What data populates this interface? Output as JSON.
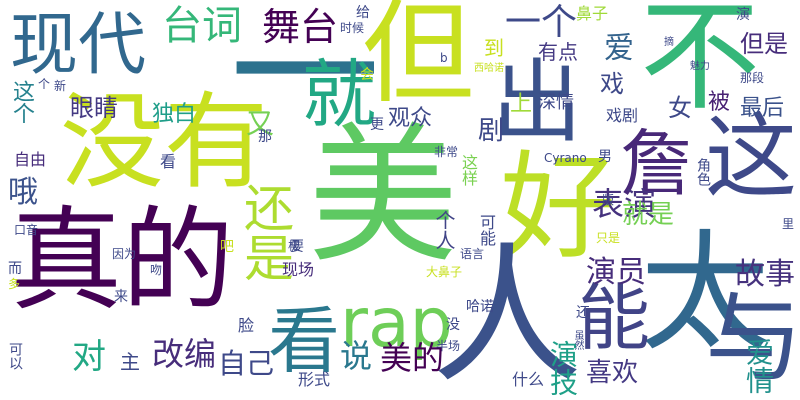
{
  "words": [
    {
      "text": "美",
      "color": "#5ec962"
    },
    {
      "text": "没有",
      "color": "#c8e020"
    },
    {
      "text": "真的",
      "color": "#440154"
    },
    {
      "text": "但",
      "color": "#c8e020"
    },
    {
      "text": "不",
      "color": "#35b779"
    },
    {
      "text": "太",
      "color": "#31688e"
    },
    {
      "text": "好",
      "color": "#bddf26"
    },
    {
      "text": "一",
      "color": "#2c728e"
    },
    {
      "text": "出",
      "color": "#3b528b"
    },
    {
      "text": "人",
      "color": "#3b528b"
    },
    {
      "text": "这",
      "color": "#3e4989"
    },
    {
      "text": "与",
      "color": "#3b528b"
    },
    {
      "text": "就",
      "color": "#22a884"
    },
    {
      "text": "看",
      "color": "#2a788e"
    },
    {
      "text": "能",
      "color": "#414487"
    },
    {
      "text": "詹",
      "color": "#482878"
    },
    {
      "text": "现代",
      "color": "#31688e"
    },
    {
      "text": "rap",
      "color": "#6ece58"
    },
    {
      "text": "还是",
      "color": "#addc30"
    },
    {
      "text": "台词",
      "color": "#35b779"
    },
    {
      "text": "舞台",
      "color": "#440154"
    },
    {
      "text": "一个",
      "color": "#3e4989"
    },
    {
      "text": "表演",
      "color": "#46327e"
    },
    {
      "text": "故事",
      "color": "#46327e"
    },
    {
      "text": "演员",
      "color": "#472d7b"
    },
    {
      "text": "改编",
      "color": "#472d7b"
    },
    {
      "text": "美的",
      "color": "#440154"
    },
    {
      "text": "自己",
      "color": "#3e4989"
    },
    {
      "text": "对",
      "color": "#22a884"
    },
    {
      "text": "说",
      "color": "#2a788e"
    },
    {
      "text": "喜欢",
      "color": "#443983"
    },
    {
      "text": "爱情",
      "color": "#21918c"
    },
    {
      "text": "演技",
      "color": "#1fa088"
    },
    {
      "text": "就是",
      "color": "#75d054"
    },
    {
      "text": "眼睛",
      "color": "#443983"
    },
    {
      "text": "独白",
      "color": "#1f9e89"
    },
    {
      "text": "这个",
      "color": "#26828e"
    },
    {
      "text": "哦",
      "color": "#3b528b"
    },
    {
      "text": "又",
      "color": "#75d054"
    },
    {
      "text": "爱",
      "color": "#33638d"
    },
    {
      "text": "戏",
      "color": "#3e4989"
    },
    {
      "text": "剧",
      "color": "#3e4989"
    },
    {
      "text": "被",
      "color": "#482173"
    },
    {
      "text": "最后",
      "color": "#3b528b"
    },
    {
      "text": "女",
      "color": "#3e4989"
    },
    {
      "text": "但是",
      "color": "#472d7b"
    },
    {
      "text": "有点",
      "color": "#443983"
    },
    {
      "text": "到",
      "color": "#c8e020"
    },
    {
      "text": "观众",
      "color": "#3e4989"
    },
    {
      "text": "深情",
      "color": "#3e4989"
    },
    {
      "text": "上",
      "color": "#a0da39"
    },
    {
      "text": "戏剧",
      "color": "#3e4989"
    },
    {
      "text": "鼻子",
      "color": "#a0da39"
    },
    {
      "text": "给",
      "color": "#3e4989"
    },
    {
      "text": "时候",
      "color": "#3e4989"
    },
    {
      "text": "演",
      "color": "#3e4989"
    },
    {
      "text": "个人",
      "color": "#414487"
    },
    {
      "text": "主",
      "color": "#3e4989"
    },
    {
      "text": "脸",
      "color": "#3e4989"
    },
    {
      "text": "现场",
      "color": "#472d7b"
    },
    {
      "text": "自由",
      "color": "#472d7b"
    },
    {
      "text": "看",
      "color": "#3e4989"
    },
    {
      "text": "吧",
      "color": "#c8e020"
    },
    {
      "text": "要",
      "color": "#3e4989"
    },
    {
      "text": "那",
      "color": "#3e4989"
    },
    {
      "text": "更",
      "color": "#3e4989"
    },
    {
      "text": "这样",
      "color": "#7ad151"
    },
    {
      "text": "可能",
      "color": "#3e4989"
    },
    {
      "text": "角色",
      "color": "#3e4989"
    },
    {
      "text": "男",
      "color": "#3e4989"
    },
    {
      "text": "还",
      "color": "#3e4989"
    },
    {
      "text": "形式",
      "color": "#3e4989"
    },
    {
      "text": "半场",
      "color": "#3e4989"
    },
    {
      "text": "什么",
      "color": "#3e4989"
    },
    {
      "text": "哈诺",
      "color": "#3e4989"
    },
    {
      "text": "没",
      "color": "#3e4989"
    },
    {
      "text": "来",
      "color": "#3e4989"
    },
    {
      "text": "可以",
      "color": "#3e4989"
    },
    {
      "text": "而",
      "color": "#3e4989"
    },
    {
      "text": "多",
      "color": "#c8e020"
    },
    {
      "text": "吻",
      "color": "#3e4989"
    },
    {
      "text": "因为",
      "color": "#3e4989"
    },
    {
      "text": "口音",
      "color": "#3e4989"
    },
    {
      "text": "极",
      "color": "#3e4989"
    },
    {
      "text": "大鼻子",
      "color": "#c8e020"
    },
    {
      "text": "虽然",
      "color": "#3e4989"
    },
    {
      "text": "只是",
      "color": "#c8e020"
    },
    {
      "text": "里",
      "color": "#3e4989"
    },
    {
      "text": "版",
      "color": "#3e4989"
    },
    {
      "text": "语言",
      "color": "#3e4989"
    },
    {
      "text": "非常",
      "color": "#3e4989"
    },
    {
      "text": "Cyrano",
      "color": "#3e4989"
    },
    {
      "text": "b",
      "color": "#3e4989"
    },
    {
      "text": "会",
      "color": "#c8e020"
    },
    {
      "text": "西哈诺",
      "color": "#c8e020"
    },
    {
      "text": "魅力",
      "color": "#3e4989"
    },
    {
      "text": "那段",
      "color": "#3e4989"
    },
    {
      "text": "个",
      "color": "#3e4989"
    },
    {
      "text": "新",
      "color": "#3e4989"
    },
    {
      "text": "摘",
      "color": "#3e4989"
    }
  ]
}
